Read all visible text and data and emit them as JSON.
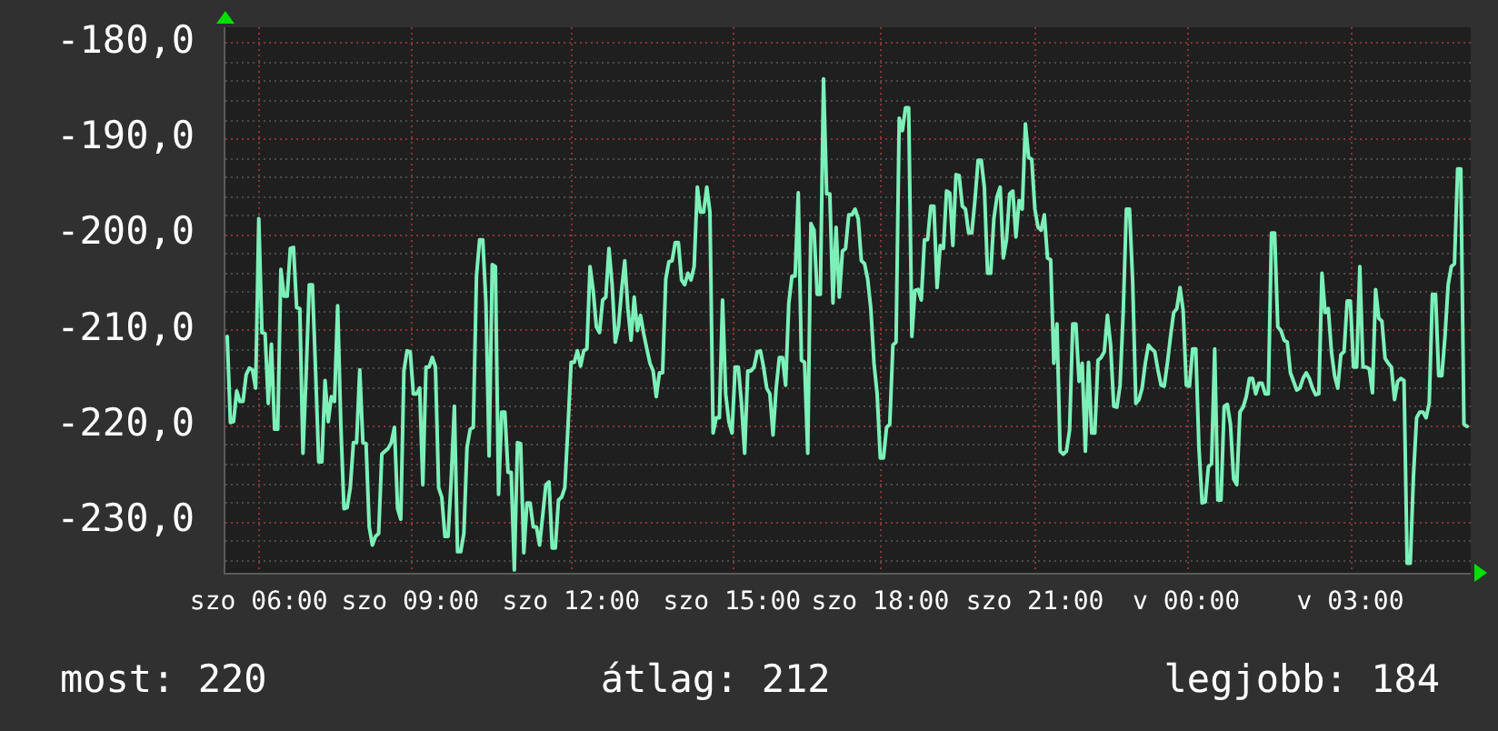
{
  "chart_data": {
    "type": "line",
    "color": "#7cf0b8",
    "marker": "none",
    "line_style": "solid",
    "grid": true,
    "ylim": [
      -235.4,
      -178.4
    ],
    "yticks": [
      {
        "value": -234,
        "label": null
      },
      {
        "value": -232,
        "label": null
      },
      {
        "value": -230,
        "label": "-230,0"
      },
      {
        "value": -228,
        "label": null
      },
      {
        "value": -226,
        "label": null
      },
      {
        "value": -224,
        "label": null
      },
      {
        "value": -222,
        "label": null
      },
      {
        "value": -220,
        "label": "-220,0"
      },
      {
        "value": -218,
        "label": null
      },
      {
        "value": -216,
        "label": null
      },
      {
        "value": -214,
        "label": null
      },
      {
        "value": -212,
        "label": null
      },
      {
        "value": -210,
        "label": "-210,0"
      },
      {
        "value": -208,
        "label": null
      },
      {
        "value": -206,
        "label": null
      },
      {
        "value": -204,
        "label": null
      },
      {
        "value": -202,
        "label": null
      },
      {
        "value": -200,
        "label": "-200,0"
      },
      {
        "value": -198,
        "label": null
      },
      {
        "value": -196,
        "label": null
      },
      {
        "value": -194,
        "label": null
      },
      {
        "value": -192,
        "label": null
      },
      {
        "value": -190,
        "label": "-190,0"
      },
      {
        "value": -188,
        "label": null
      },
      {
        "value": -186,
        "label": null
      },
      {
        "value": -184,
        "label": null
      },
      {
        "value": -182,
        "label": null
      },
      {
        "value": -180,
        "label": "-180,0"
      }
    ],
    "annotations": [
      "most: 220",
      "átlag: 212",
      "legjobb: 184"
    ],
    "categories": [
      null,
      null,
      null,
      null,
      null,
      null,
      null,
      null,
      null,
      null,
      "szo 06:00",
      null,
      null,
      null,
      null,
      null,
      null,
      null,
      null,
      null,
      null,
      null,
      null,
      null,
      null,
      null,
      null,
      null,
      null,
      null,
      null,
      null,
      null,
      null,
      null,
      null,
      null,
      null,
      null,
      null,
      null,
      null,
      null,
      null,
      null,
      null,
      null,
      null,
      null,
      null,
      null,
      null,
      null,
      null,
      null,
      null,
      null,
      null,
      "szo 09:00",
      null,
      null,
      null,
      null,
      null,
      null,
      null,
      null,
      null,
      null,
      null,
      null,
      null,
      null,
      null,
      null,
      null,
      null,
      null,
      null,
      null,
      null,
      null,
      null,
      null,
      null,
      null,
      null,
      null,
      null,
      null,
      null,
      null,
      null,
      null,
      null,
      null,
      null,
      null,
      null,
      null,
      null,
      null,
      null,
      null,
      null,
      null,
      null,
      null,
      null,
      "szo 12:00",
      null,
      null,
      null,
      null,
      null,
      null,
      null,
      null,
      null,
      null,
      null,
      null,
      null,
      null,
      null,
      null,
      null,
      null,
      null,
      null,
      null,
      null,
      null,
      null,
      null,
      null,
      null,
      null,
      null,
      null,
      null,
      null,
      null,
      null,
      null,
      null,
      null,
      null,
      null,
      null,
      null,
      null,
      null,
      null,
      null,
      null,
      null,
      null,
      null,
      null,
      "szo 15:00",
      null,
      null,
      null,
      null,
      null,
      null,
      null,
      null,
      null,
      null,
      null,
      null,
      null,
      null,
      null,
      null,
      null,
      null,
      null,
      null,
      null,
      null,
      null,
      null,
      null,
      null,
      null,
      null,
      null,
      null,
      null,
      null,
      null,
      null,
      null,
      null,
      null,
      null,
      null,
      null,
      null,
      null,
      null,
      null,
      null,
      null,
      "szo 18:00",
      null,
      null,
      null,
      null,
      null,
      null,
      null,
      null,
      null,
      null,
      null,
      null,
      null,
      null,
      null,
      null,
      null,
      null,
      null,
      null,
      null,
      null,
      null,
      null,
      null,
      null,
      null,
      null,
      null,
      null,
      null,
      null,
      null,
      null,
      null,
      null,
      null,
      null,
      null,
      null,
      null,
      null,
      null,
      null,
      null,
      null,
      null,
      null,
      "szo 21:00",
      null,
      null,
      null,
      null,
      null,
      null,
      null,
      null,
      null,
      null,
      null,
      null,
      null,
      null,
      null,
      null,
      null,
      null,
      null,
      null,
      null,
      null,
      null,
      null,
      null,
      null,
      null,
      null,
      null,
      null,
      null,
      null,
      null,
      null,
      null,
      null,
      null,
      null,
      null,
      null,
      null,
      null,
      null,
      null,
      null,
      null,
      null,
      "v 00:00",
      null,
      null,
      null,
      null,
      null,
      null,
      null,
      null,
      null,
      null,
      null,
      null,
      null,
      null,
      null,
      null,
      null,
      null,
      null,
      null,
      null,
      null,
      null,
      null,
      null,
      null,
      null,
      null,
      null,
      null,
      null,
      null,
      null,
      null,
      null,
      null,
      null,
      null,
      null,
      null,
      null,
      null,
      null,
      null,
      null,
      null,
      null,
      null,
      null,
      null,
      null,
      "v 03:00",
      null,
      null,
      null,
      null,
      null,
      null,
      null,
      null,
      null,
      null,
      null,
      null,
      null,
      null,
      null,
      null,
      null,
      null,
      null,
      null,
      null,
      null,
      null,
      null,
      null,
      null,
      null,
      null,
      null,
      null,
      null,
      null,
      null,
      null,
      null,
      null,
      null
    ],
    "values": [
      -210.7,
      -219.7,
      -219.6,
      -216.4,
      -217.5,
      -217.5,
      -214.7,
      -214.0,
      -214.2,
      -216.1,
      -198.4,
      -210.3,
      -210.4,
      -217.7,
      -211.5,
      -220.4,
      -220.4,
      -203.7,
      -206.5,
      -206.5,
      -201.5,
      -201.4,
      -207.7,
      -207.8,
      -222.9,
      -214.8,
      -205.3,
      -205.3,
      -214.3,
      -223.8,
      -223.8,
      -215.3,
      -219.6,
      -217.0,
      -217.5,
      -207.5,
      -219.9,
      -228.7,
      -228.6,
      -226.5,
      -221.8,
      -221.8,
      -214.2,
      -221.8,
      -221.9,
      -230.6,
      -232.5,
      -231.6,
      -231.3,
      -223.0,
      -222.7,
      -222.4,
      -221.8,
      -220.2,
      -228.7,
      -229.8,
      -214.3,
      -212.2,
      -212.3,
      -216.7,
      -216.7,
      -216.1,
      -226.2,
      -213.9,
      -213.9,
      -212.9,
      -213.9,
      -226.5,
      -227.5,
      -231.6,
      -231.6,
      -225.6,
      -218.0,
      -233.2,
      -233.2,
      -231.3,
      -222.3,
      -220.4,
      -220.2,
      -204.4,
      -200.6,
      -200.6,
      -207.2,
      -223.2,
      -203.2,
      -203.4,
      -227.2,
      -218.6,
      -218.6,
      -224.9,
      -224.9,
      -235.1,
      -221.8,
      -221.9,
      -233.3,
      -228.1,
      -228.1,
      -230.6,
      -230.6,
      -232.5,
      -229.4,
      -226.2,
      -225.9,
      -232.8,
      -232.8,
      -227.8,
      -227.5,
      -226.5,
      -220.2,
      -213.4,
      -213.4,
      -212.2,
      -213.8,
      -212.2,
      -212.0,
      -203.4,
      -205.9,
      -209.7,
      -210.3,
      -206.9,
      -206.6,
      -201.5,
      -205.3,
      -211.3,
      -209.7,
      -205.9,
      -202.8,
      -207.8,
      -211.1,
      -206.6,
      -210.1,
      -208.5,
      -210.4,
      -212.0,
      -213.5,
      -214.3,
      -217.0,
      -214.5,
      -214.5,
      -204.7,
      -202.9,
      -202.8,
      -200.9,
      -200.9,
      -204.8,
      -205.3,
      -204.1,
      -204.8,
      -203.4,
      -195.1,
      -197.7,
      -197.7,
      -195.1,
      -197.7,
      -220.8,
      -219.2,
      -219.2,
      -206.9,
      -216.7,
      -219.6,
      -220.8,
      -213.9,
      -213.9,
      -217.7,
      -222.9,
      -214.3,
      -214.3,
      -213.9,
      -212.3,
      -212.2,
      -213.9,
      -216.1,
      -216.7,
      -221.0,
      -216.1,
      -212.9,
      -212.9,
      -215.8,
      -207.2,
      -204.4,
      -204.4,
      -195.7,
      -213.2,
      -213.4,
      -222.9,
      -198.9,
      -199.6,
      -206.3,
      -206.3,
      -183.8,
      -195.8,
      -195.8,
      -207.2,
      -199.3,
      -206.6,
      -201.8,
      -201.5,
      -198.0,
      -198.0,
      -197.4,
      -198.4,
      -202.8,
      -203.1,
      -204.7,
      -207.8,
      -213.5,
      -216.7,
      -223.4,
      -223.4,
      -220.2,
      -219.9,
      -211.6,
      -211.3,
      -187.9,
      -189.2,
      -186.8,
      -186.8,
      -210.7,
      -205.9,
      -205.8,
      -206.9,
      -200.6,
      -200.6,
      -197.1,
      -197.1,
      -205.6,
      -201.2,
      -201.5,
      -195.5,
      -195.7,
      -201.2,
      -193.8,
      -193.9,
      -197.1,
      -197.4,
      -199.9,
      -199.9,
      -196.5,
      -192.3,
      -192.3,
      -195.2,
      -204.1,
      -204.1,
      -198.4,
      -196.1,
      -195.1,
      -202.5,
      -200.6,
      -195.8,
      -195.5,
      -200.3,
      -196.5,
      -197.4,
      -188.5,
      -192.0,
      -192.2,
      -197.4,
      -199.3,
      -199.6,
      -198.0,
      -202.5,
      -202.7,
      -213.5,
      -209.4,
      -222.7,
      -223.0,
      -222.7,
      -220.5,
      -209.4,
      -209.4,
      -215.4,
      -213.5,
      -222.7,
      -213.4,
      -220.8,
      -220.8,
      -213.2,
      -212.9,
      -212.3,
      -208.5,
      -211.6,
      -218.0,
      -218.1,
      -215.8,
      -208.2,
      -197.4,
      -197.4,
      -205.0,
      -217.7,
      -217.3,
      -216.1,
      -213.5,
      -211.6,
      -212.0,
      -212.3,
      -214.2,
      -215.8,
      -215.9,
      -213.5,
      -210.7,
      -208.2,
      -207.8,
      -205.6,
      -208.0,
      -215.8,
      -215.9,
      -212.0,
      -212.0,
      -222.3,
      -228.1,
      -228.0,
      -224.3,
      -224.0,
      -212.0,
      -227.8,
      -227.8,
      -218.0,
      -217.8,
      -219.9,
      -225.6,
      -226.2,
      -218.6,
      -218.1,
      -217.0,
      -215.1,
      -215.1,
      -216.7,
      -215.6,
      -215.6,
      -216.7,
      -216.7,
      -199.9,
      -199.9,
      -209.7,
      -210.1,
      -211.1,
      -211.3,
      -214.5,
      -215.4,
      -216.3,
      -216.1,
      -215.1,
      -214.5,
      -215.1,
      -216.1,
      -216.8,
      -216.7,
      -204.1,
      -208.2,
      -207.8,
      -212.3,
      -214.8,
      -216.1,
      -212.6,
      -212.3,
      -207.0,
      -207.0,
      -213.9,
      -213.9,
      -203.4,
      -213.9,
      -213.9,
      -214.1,
      -216.6,
      -205.8,
      -208.8,
      -209.1,
      -213.0,
      -213.5,
      -213.9,
      -217.3,
      -215.4,
      -215.1,
      -215.3,
      -234.4,
      -234.4,
      -225.3,
      -219.2,
      -218.6,
      -218.6,
      -219.2,
      -217.7,
      -206.3,
      -206.3,
      -214.8,
      -214.8,
      -210.7,
      -205.3,
      -203.4,
      -203.1,
      -193.2,
      -193.2,
      -219.9,
      -220.1
    ]
  }
}
